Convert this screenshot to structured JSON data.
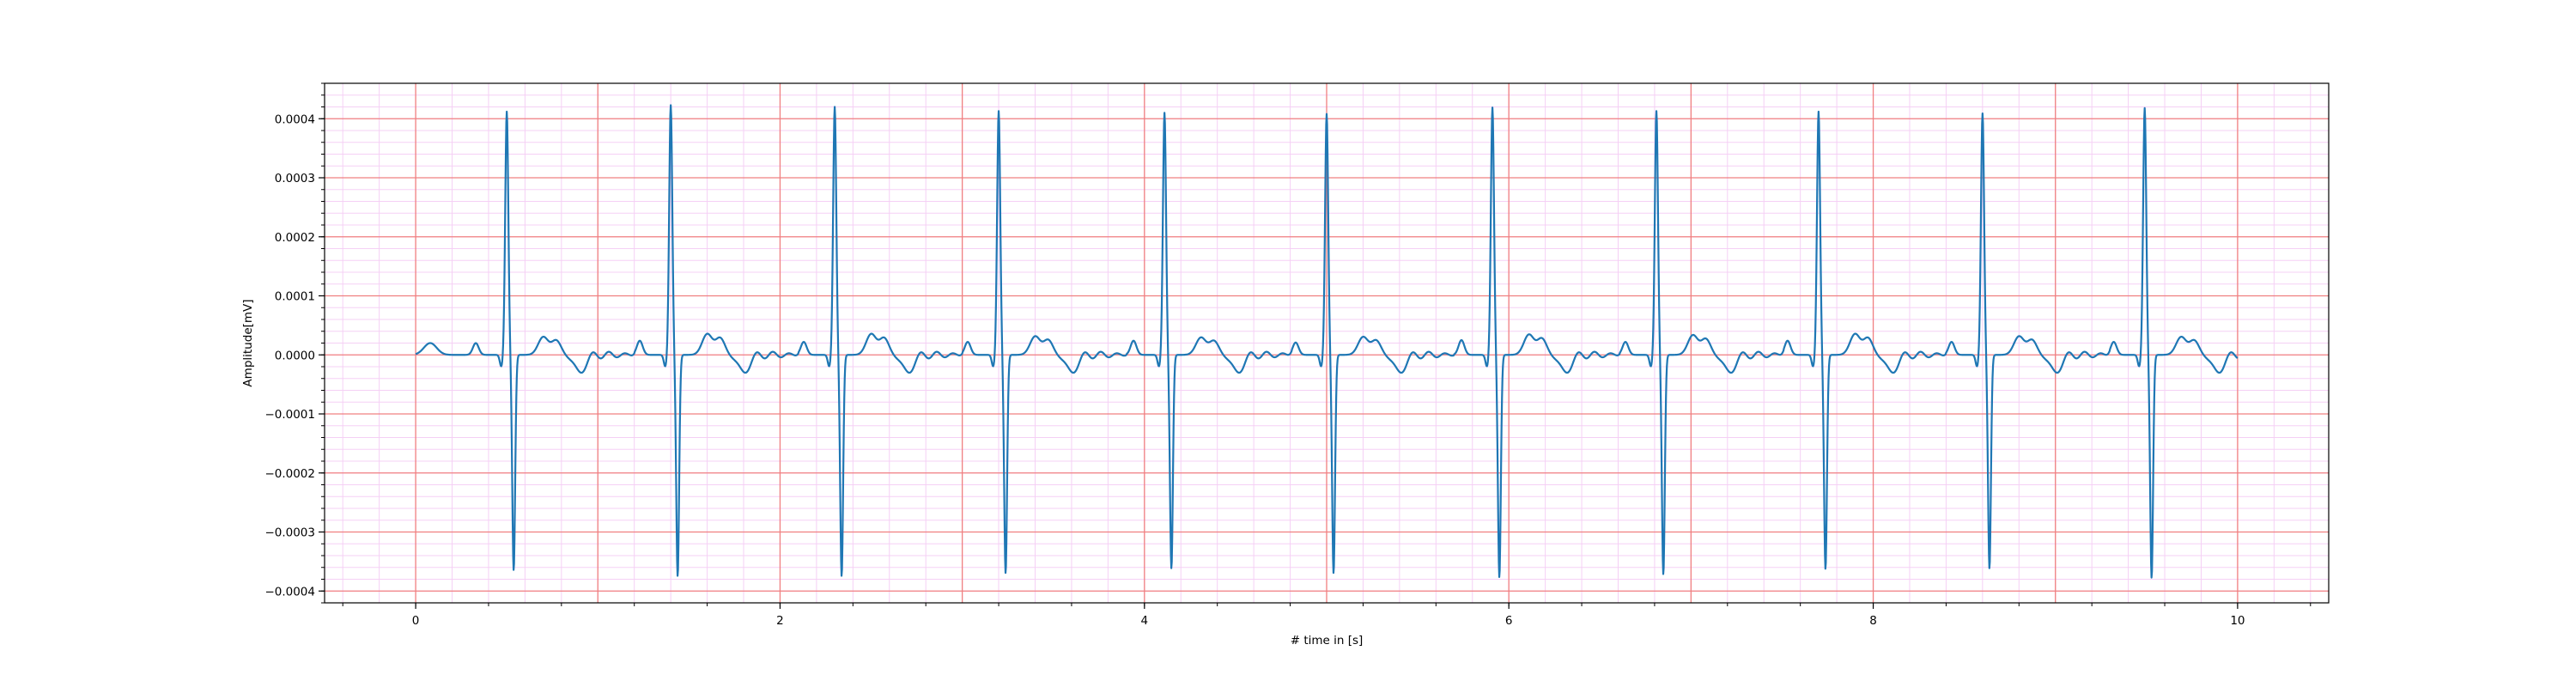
{
  "chart_data": {
    "type": "line",
    "title": "",
    "xlabel": "# time in [s]",
    "ylabel": "Amplitude[mV]",
    "xlim": [
      -0.5,
      10.5
    ],
    "ylim": [
      -0.00042,
      0.00046
    ],
    "x_ticks": [
      0,
      2,
      4,
      6,
      8,
      10
    ],
    "x_tick_labels": [
      "0",
      "2",
      "4",
      "6",
      "8",
      "10"
    ],
    "y_ticks": [
      0.0004,
      0.0003,
      0.0002,
      0.0001,
      0.0,
      -0.0001,
      -0.0002,
      -0.0003,
      -0.0004
    ],
    "y_tick_labels": [
      "0.0004",
      "0.0003",
      "0.0002",
      "0.0001",
      "0.0000",
      "−0.0001",
      "−0.0002",
      "−0.0003",
      "−0.0004"
    ],
    "grid": {
      "major": true,
      "minor": true,
      "major_color": "#f08080",
      "minor_color": "#f5d0f5",
      "x_major_step": 1,
      "y_major_step": 0.0001,
      "x_minor_step": 0.2,
      "y_minor_step": 2e-05
    },
    "legend": "none",
    "series": [
      {
        "color": "#1f77b4",
        "beat_times": [
          0.5,
          1.4,
          2.3,
          3.2,
          4.11,
          5.0,
          5.91,
          6.81,
          7.7,
          8.6,
          9.49
        ],
        "r_peak_values": [
          0.000412,
          0.000423,
          0.00042,
          0.000413,
          0.00041,
          0.000408,
          0.000419,
          0.000413,
          0.000412,
          0.000409,
          0.000418
        ],
        "s_trough_values": [
          -0.000365,
          -0.000375,
          -0.000375,
          -0.00037,
          -0.000362,
          -0.00037,
          -0.000377,
          -0.000372,
          -0.000363,
          -0.000362,
          -0.000378
        ],
        "t_wave_peak_values": [
          3e-05,
          3.5e-05,
          3.5e-05,
          3.1e-05,
          2.9e-05,
          3e-05,
          3.4e-05,
          3.3e-05,
          3.5e-05,
          3.1e-05,
          3e-05
        ],
        "p_wave_peak_values": [
          2e-05,
          2.4e-05,
          2.2e-05,
          2.2e-05,
          2.4e-05,
          2.1e-05,
          2.5e-05,
          2.2e-05,
          2.4e-05,
          2.2e-05,
          2.2e-05
        ],
        "t_start": 0.0,
        "t_end": 10.0
      }
    ]
  }
}
